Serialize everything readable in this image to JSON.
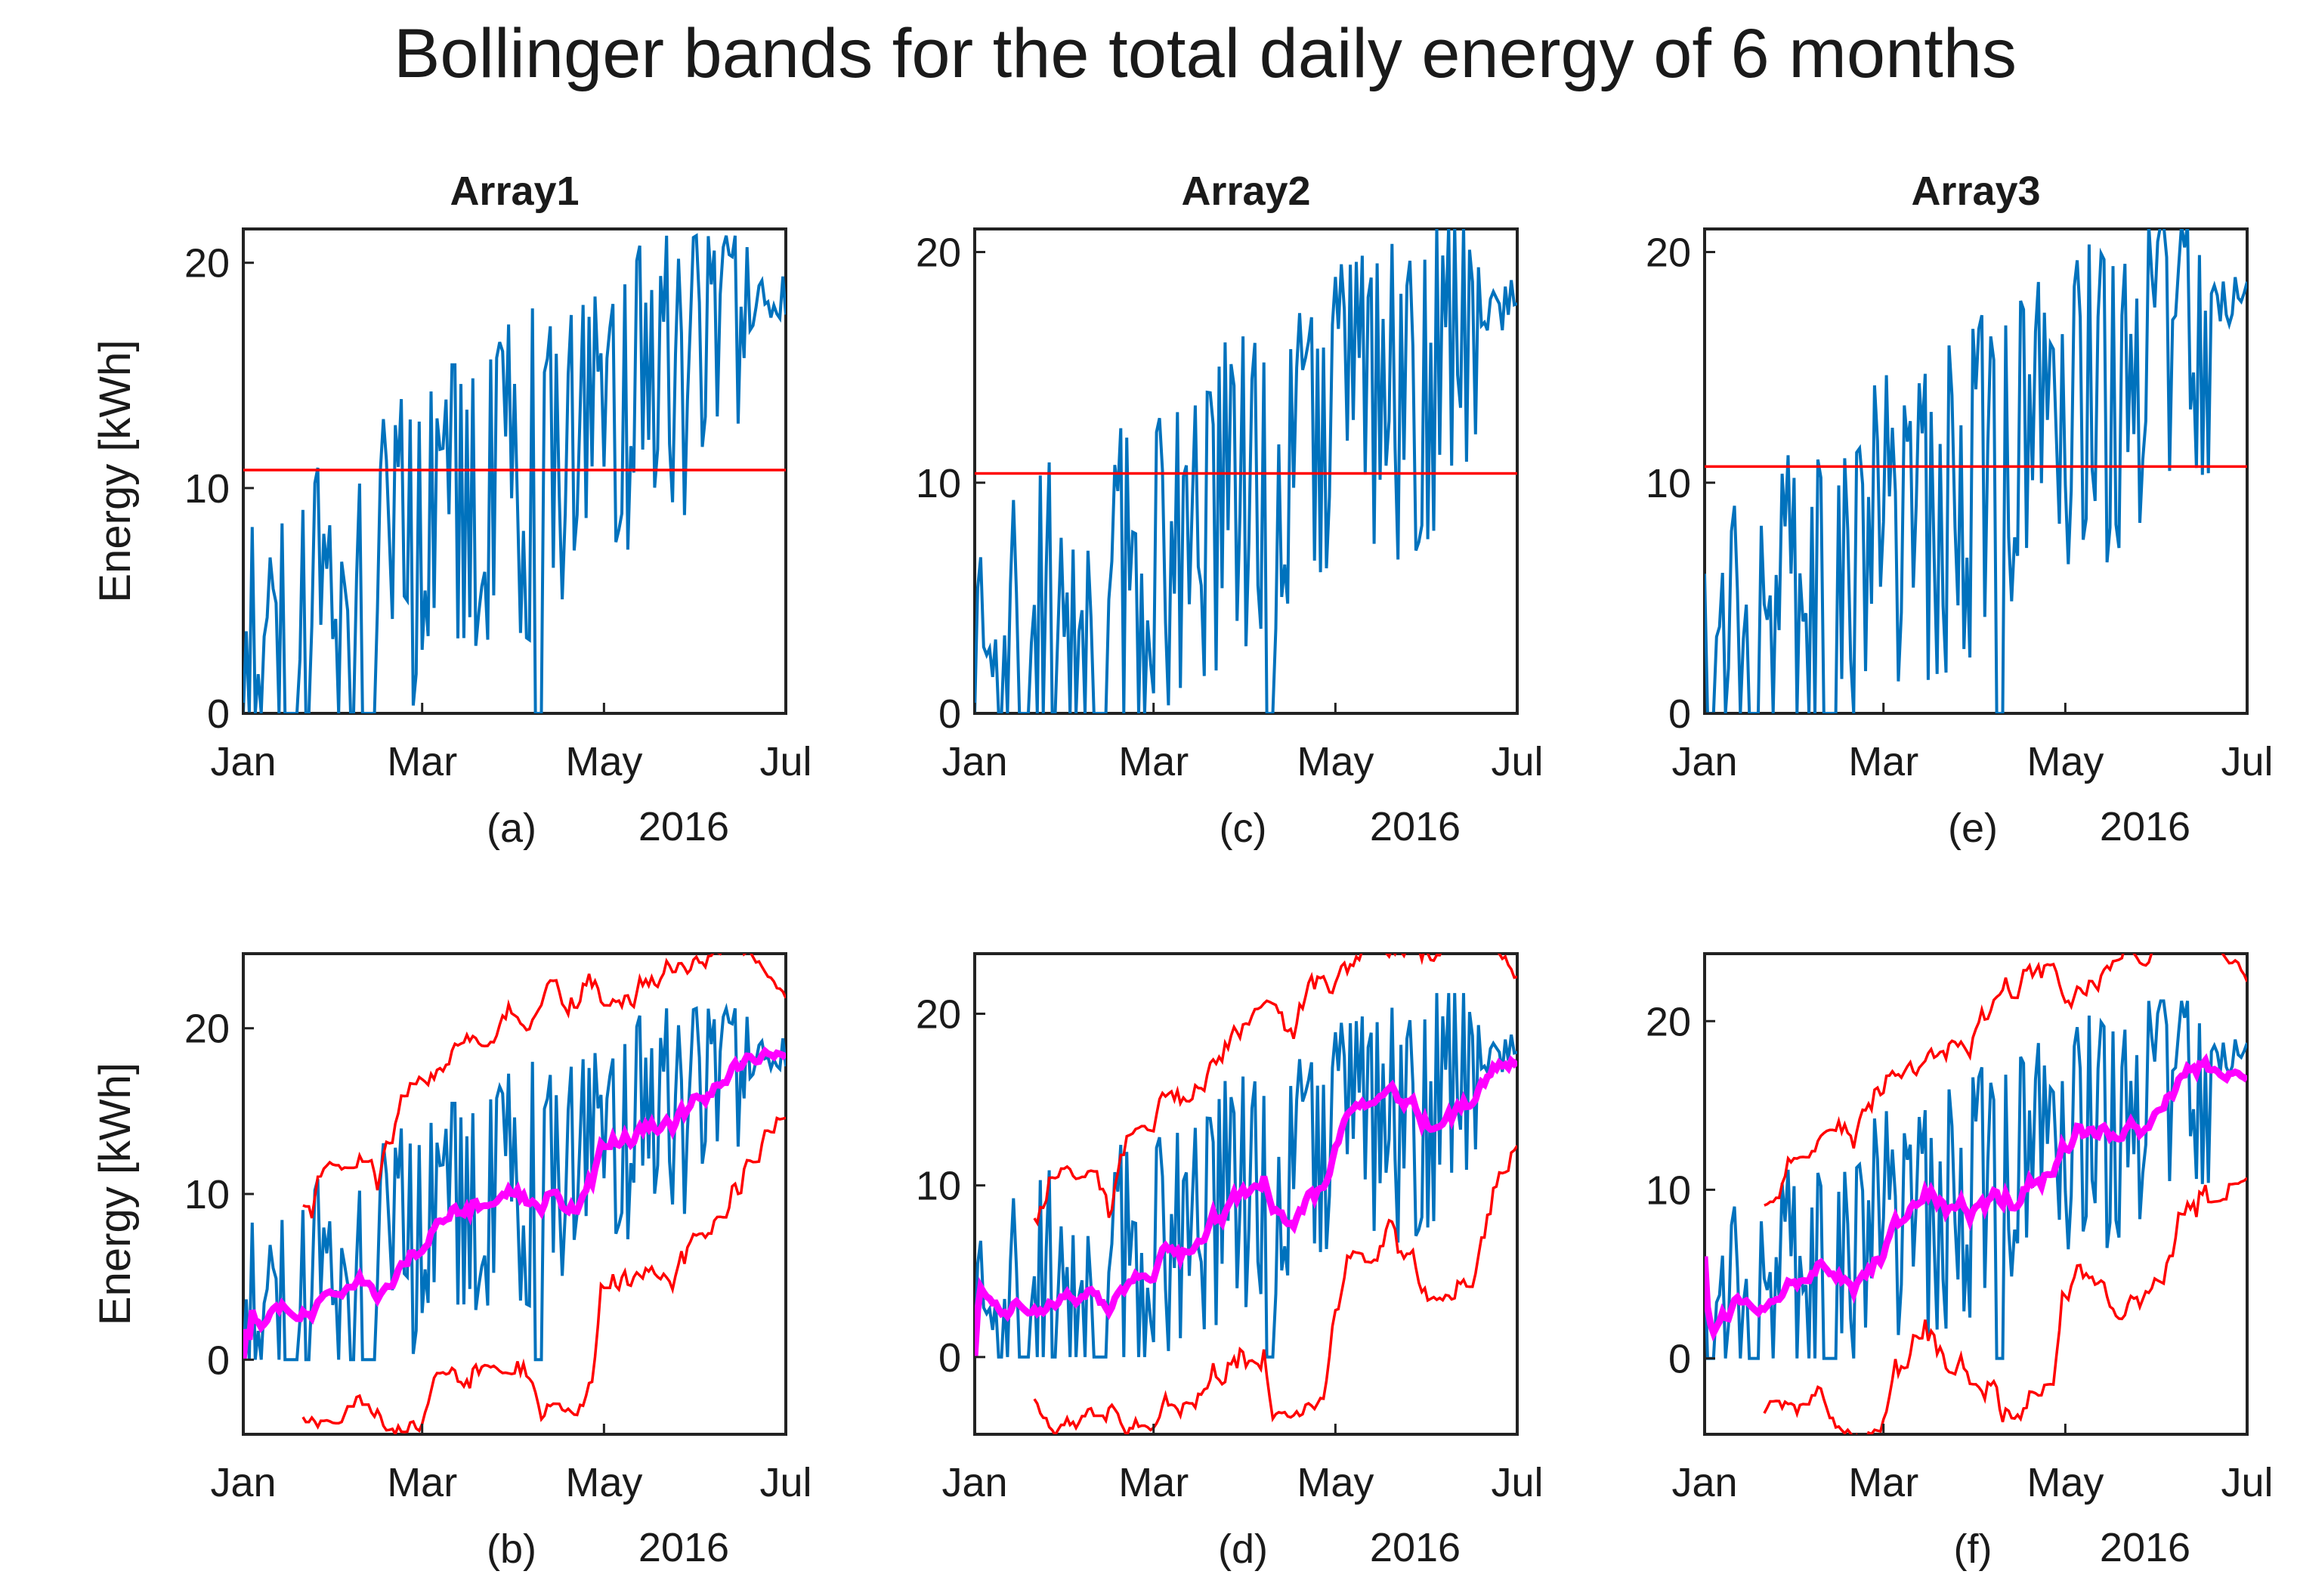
{
  "figure_title": "Bollinger bands for the total daily energy of 6 months",
  "colors": {
    "energy": "#0072BD",
    "band": "#FF0000",
    "mean": "#FF00FF",
    "axis": "#222222"
  },
  "chart_data": [
    {
      "id": "a",
      "type": "line",
      "panel_title": "Array1",
      "sublabel": "(a)",
      "year_label": "2016",
      "ylabel": "Energy [kWh]",
      "xlim": [
        0,
        182
      ],
      "ylim": [
        0,
        21.5
      ],
      "yticks": [
        "0",
        "10",
        "20"
      ],
      "xticks": [
        "Jan",
        "Mar",
        "May",
        "Jul"
      ],
      "seed": 11,
      "level": 1.0,
      "series": [
        {
          "name": "Daily energy",
          "kind": "energy"
        },
        {
          "name": "Mean",
          "kind": "hline",
          "value": 10.8
        }
      ]
    },
    {
      "id": "c",
      "type": "line",
      "panel_title": "Array2",
      "sublabel": "(c)",
      "year_label": "2016",
      "ylabel": "",
      "xlim": [
        0,
        182
      ],
      "ylim": [
        0,
        21
      ],
      "yticks": [
        "0",
        "10",
        "20"
      ],
      "xticks": [
        "Jan",
        "Mar",
        "May",
        "Jul"
      ],
      "seed": 23,
      "level": 0.97,
      "series": [
        {
          "name": "Daily energy",
          "kind": "energy"
        },
        {
          "name": "Mean",
          "kind": "hline",
          "value": 10.4
        }
      ]
    },
    {
      "id": "e",
      "type": "line",
      "panel_title": "Array3",
      "sublabel": "(e)",
      "year_label": "2016",
      "ylabel": "",
      "xlim": [
        0,
        182
      ],
      "ylim": [
        0,
        21
      ],
      "yticks": [
        "0",
        "10",
        "20"
      ],
      "xticks": [
        "Jan",
        "Mar",
        "May",
        "Jul"
      ],
      "seed": 37,
      "level": 0.99,
      "series": [
        {
          "name": "Daily energy",
          "kind": "energy"
        },
        {
          "name": "Mean",
          "kind": "hline",
          "value": 10.7
        }
      ]
    },
    {
      "id": "b",
      "type": "line",
      "panel_title": "",
      "sublabel": "(b)",
      "year_label": "2016",
      "ylabel": "Energy [kWh]",
      "xlim": [
        0,
        182
      ],
      "ylim": [
        -4.5,
        24.5
      ],
      "yticks": [
        "0",
        "10",
        "20"
      ],
      "xticks": [
        "Jan",
        "Mar",
        "May",
        "Jul"
      ],
      "seed": 11,
      "level": 1.0,
      "series": [
        {
          "name": "Daily energy",
          "kind": "energy"
        },
        {
          "name": "Upper band",
          "kind": "upper"
        },
        {
          "name": "Lower band",
          "kind": "lower"
        },
        {
          "name": "Moving average",
          "kind": "mean"
        }
      ]
    },
    {
      "id": "d",
      "type": "line",
      "panel_title": "",
      "sublabel": "(d)",
      "year_label": "2016",
      "ylabel": "",
      "xlim": [
        0,
        182
      ],
      "ylim": [
        -4.5,
        23.5
      ],
      "yticks": [
        "0",
        "10",
        "20"
      ],
      "xticks": [
        "Jan",
        "Mar",
        "May",
        "Jul"
      ],
      "seed": 23,
      "level": 0.97,
      "series": [
        {
          "name": "Daily energy",
          "kind": "energy"
        },
        {
          "name": "Upper band",
          "kind": "upper"
        },
        {
          "name": "Lower band",
          "kind": "lower"
        },
        {
          "name": "Moving average",
          "kind": "mean"
        }
      ]
    },
    {
      "id": "f",
      "type": "line",
      "panel_title": "",
      "sublabel": "(f)",
      "year_label": "2016",
      "ylabel": "",
      "xlim": [
        0,
        182
      ],
      "ylim": [
        -4.5,
        24
      ],
      "yticks": [
        "0",
        "10",
        "20"
      ],
      "xticks": [
        "Jan",
        "Mar",
        "May",
        "Jul"
      ],
      "seed": 37,
      "level": 0.99,
      "series": [
        {
          "name": "Daily energy",
          "kind": "energy"
        },
        {
          "name": "Upper band",
          "kind": "upper"
        },
        {
          "name": "Lower band",
          "kind": "lower"
        },
        {
          "name": "Moving average",
          "kind": "mean"
        }
      ]
    }
  ]
}
